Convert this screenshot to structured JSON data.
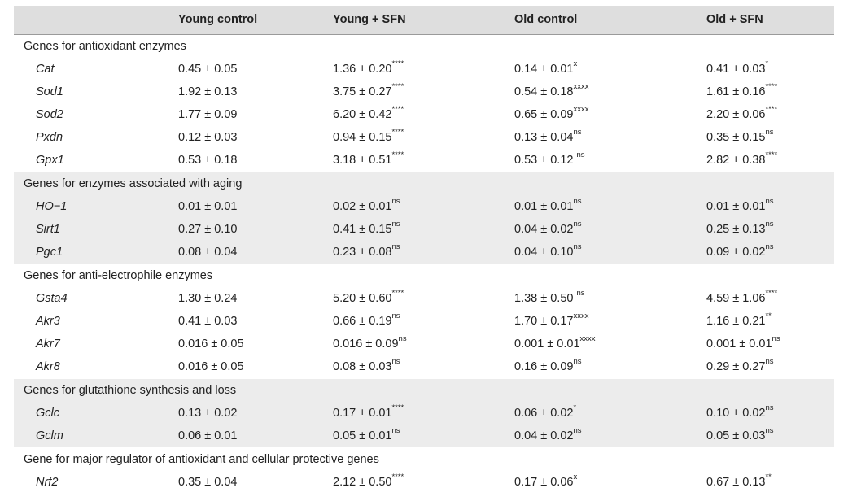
{
  "columns": [
    "",
    "Young control",
    "Young + SFN",
    "Old control",
    "Old + SFN"
  ],
  "groups": [
    {
      "title": "Genes for antioxidant enzymes",
      "rows": [
        {
          "gene": "Cat",
          "cells": [
            {
              "v": "0.45 ± 0.05",
              "s": ""
            },
            {
              "v": "1.36 ± 0.20",
              "s": "****"
            },
            {
              "v": "0.14 ± 0.01",
              "s": "x"
            },
            {
              "v": "0.41 ± 0.03",
              "s": "*"
            }
          ]
        },
        {
          "gene": "Sod1",
          "cells": [
            {
              "v": "1.92 ± 0.13",
              "s": ""
            },
            {
              "v": "3.75 ± 0.27",
              "s": "****"
            },
            {
              "v": "0.54 ± 0.18",
              "s": "xxxx"
            },
            {
              "v": "1.61 ± 0.16",
              "s": "****"
            }
          ]
        },
        {
          "gene": "Sod2",
          "cells": [
            {
              "v": "1.77 ± 0.09",
              "s": ""
            },
            {
              "v": "6.20 ± 0.42",
              "s": "****"
            },
            {
              "v": "0.65 ± 0.09",
              "s": "xxxx"
            },
            {
              "v": "2.20 ± 0.06",
              "s": "****"
            }
          ]
        },
        {
          "gene": "Pxdn",
          "cells": [
            {
              "v": "0.12 ± 0.03",
              "s": ""
            },
            {
              "v": "0.94 ± 0.15",
              "s": "****"
            },
            {
              "v": "0.13 ± 0.04",
              "s": "ns"
            },
            {
              "v": "0.35 ± 0.15",
              "s": "ns"
            }
          ]
        },
        {
          "gene": "Gpx1",
          "cells": [
            {
              "v": "0.53 ± 0.18",
              "s": ""
            },
            {
              "v": "3.18 ± 0.51",
              "s": "****"
            },
            {
              "v": "0.53 ± 0.12 ",
              "s": "ns"
            },
            {
              "v": "2.82 ± 0.38",
              "s": "****"
            }
          ]
        }
      ]
    },
    {
      "title": "Genes for enzymes associated with aging",
      "rows": [
        {
          "gene": "HO−1",
          "cells": [
            {
              "v": "0.01 ± 0.01",
              "s": ""
            },
            {
              "v": "0.02 ± 0.01",
              "s": "ns"
            },
            {
              "v": "0.01 ± 0.01",
              "s": "ns"
            },
            {
              "v": "0.01 ± 0.01",
              "s": "ns"
            }
          ]
        },
        {
          "gene": "Sirt1",
          "cells": [
            {
              "v": "0.27 ± 0.10",
              "s": ""
            },
            {
              "v": "0.41 ± 0.15",
              "s": "ns"
            },
            {
              "v": "0.04 ± 0.02",
              "s": "ns"
            },
            {
              "v": "0.25 ± 0.13",
              "s": "ns"
            }
          ]
        },
        {
          "gene": "Pgc1",
          "cells": [
            {
              "v": "0.08 ± 0.04",
              "s": ""
            },
            {
              "v": "0.23 ± 0.08",
              "s": "ns"
            },
            {
              "v": "0.04 ± 0.10",
              "s": "ns"
            },
            {
              "v": "0.09 ± 0.02",
              "s": "ns"
            }
          ]
        }
      ]
    },
    {
      "title": "Genes for anti-electrophile enzymes",
      "rows": [
        {
          "gene": "Gsta4",
          "cells": [
            {
              "v": "1.30 ± 0.24",
              "s": ""
            },
            {
              "v": "5.20 ± 0.60",
              "s": "****"
            },
            {
              "v": "1.38 ± 0.50 ",
              "s": "ns"
            },
            {
              "v": "4.59 ± 1.06",
              "s": "****"
            }
          ]
        },
        {
          "gene": "Akr3",
          "cells": [
            {
              "v": "0.41 ± 0.03",
              "s": ""
            },
            {
              "v": "0.66 ± 0.19",
              "s": "ns"
            },
            {
              "v": "1.70 ± 0.17",
              "s": "xxxx"
            },
            {
              "v": "1.16 ± 0.21",
              "s": "**"
            }
          ]
        },
        {
          "gene": "Akr7",
          "cells": [
            {
              "v": "0.016 ± 0.05",
              "s": ""
            },
            {
              "v": "0.016 ± 0.09",
              "s": "ns"
            },
            {
              "v": "0.001 ± 0.01",
              "s": "xxxx"
            },
            {
              "v": "0.001 ± 0.01",
              "s": "ns"
            }
          ]
        },
        {
          "gene": "Akr8",
          "cells": [
            {
              "v": "0.016 ± 0.05",
              "s": ""
            },
            {
              "v": "0.08 ± 0.03",
              "s": "ns"
            },
            {
              "v": "0.16 ± 0.09",
              "s": "ns"
            },
            {
              "v": "0.29 ± 0.27",
              "s": "ns"
            }
          ]
        }
      ]
    },
    {
      "title": "Genes for glutathione synthesis and loss",
      "rows": [
        {
          "gene": "Gclc",
          "cells": [
            {
              "v": "0.13 ± 0.02",
              "s": ""
            },
            {
              "v": "0.17 ± 0.01",
              "s": "****"
            },
            {
              "v": "0.06 ± 0.02",
              "s": "*"
            },
            {
              "v": "0.10 ± 0.02",
              "s": "ns"
            }
          ]
        },
        {
          "gene": "Gclm",
          "cells": [
            {
              "v": "0.06 ± 0.01",
              "s": ""
            },
            {
              "v": "0.05 ± 0.01",
              "s": "ns"
            },
            {
              "v": "0.04 ± 0.02",
              "s": "ns"
            },
            {
              "v": "0.05 ± 0.03",
              "s": "ns"
            }
          ]
        }
      ]
    },
    {
      "title": "Gene for major regulator of antioxidant and cellular protective genes",
      "rows": [
        {
          "gene": "Nrf2",
          "cells": [
            {
              "v": "0.35 ± 0.04",
              "s": ""
            },
            {
              "v": "2.12 ± 0.50",
              "s": "****"
            },
            {
              "v": "0.17 ± 0.06",
              "s": "x"
            },
            {
              "v": "0.67 ± 0.13",
              "s": "**"
            }
          ]
        }
      ]
    }
  ]
}
